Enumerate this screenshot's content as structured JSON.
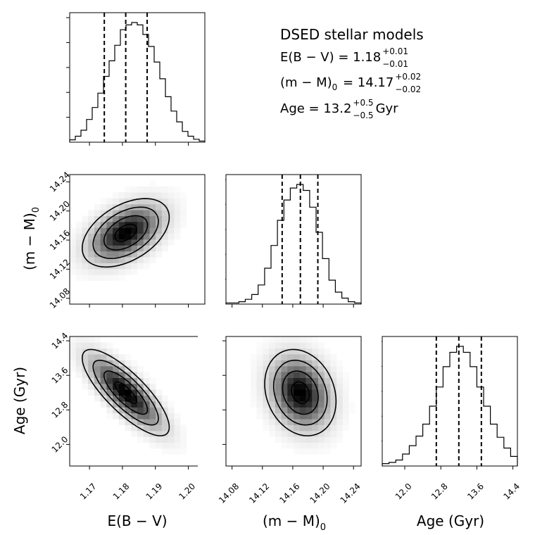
{
  "legend": {
    "title": "DSED stellar models",
    "ebv": {
      "lhs": "E(B − V) = 1.18",
      "sup": "+0.01",
      "sub": "−0.01",
      "tail": ""
    },
    "mm": {
      "lhs_a": "(m − M)",
      "lhs_sub": "0",
      "lhs_b": " = 14.17",
      "sup": "+0.02",
      "sub": "−0.02",
      "tail": ""
    },
    "age": {
      "lhs": "Age = 13.2",
      "sup": "+0.5",
      "sub": "−0.5",
      "tail": "Gyr"
    }
  },
  "axis_labels": {
    "ebv": "E(B − V)",
    "mm_main": "(m − M)",
    "mm_sub": "0",
    "age": "Age (Gyr)"
  },
  "chart_data": {
    "type": "corner",
    "parameters": [
      {
        "key": "ebv",
        "label": "E(B − V)",
        "median": 1.181,
        "lower": 1.1745,
        "upper": 1.1875,
        "range": [
          1.164,
          1.205
        ],
        "ticks": [
          1.17,
          1.18,
          1.19,
          1.2
        ],
        "tick_labels": [
          "1.17",
          "1.18",
          "1.19",
          "1.20"
        ]
      },
      {
        "key": "mm",
        "label": "(m − M)0",
        "median": 14.17,
        "lower": 14.146,
        "upper": 14.193,
        "range": [
          14.072,
          14.25
        ],
        "ticks": [
          14.08,
          14.12,
          14.16,
          14.2,
          14.24
        ],
        "tick_labels": [
          "14.08",
          "14.12",
          "14.16",
          "14.20",
          "14.24"
        ]
      },
      {
        "key": "age",
        "label": "Age (Gyr)",
        "median": 13.2,
        "lower": 12.7,
        "upper": 13.7,
        "range": [
          11.5,
          14.5
        ],
        "ticks": [
          12.0,
          12.8,
          13.6,
          14.4
        ],
        "tick_labels": [
          "12.0",
          "12.8",
          "13.6",
          "14.4"
        ]
      }
    ],
    "histograms": {
      "ebv": [
        0.02,
        0.05,
        0.1,
        0.19,
        0.29,
        0.41,
        0.55,
        0.68,
        0.81,
        0.94,
        0.98,
        1.0,
        0.98,
        0.9,
        0.8,
        0.67,
        0.53,
        0.38,
        0.26,
        0.17,
        0.09,
        0.05,
        0.025,
        0.01
      ],
      "mm": [
        0.01,
        0.01,
        0.02,
        0.04,
        0.08,
        0.16,
        0.3,
        0.49,
        0.7,
        0.87,
        0.97,
        1.0,
        0.95,
        0.81,
        0.6,
        0.38,
        0.2,
        0.1,
        0.05,
        0.02,
        0.01
      ],
      "age": [
        0.02,
        0.03,
        0.05,
        0.1,
        0.17,
        0.25,
        0.35,
        0.5,
        0.66,
        0.83,
        0.95,
        1.0,
        0.95,
        0.83,
        0.66,
        0.5,
        0.35,
        0.24,
        0.15,
        0.08
      ]
    },
    "correlations": {
      "mm_ebv": 0.45,
      "age_ebv": -0.8,
      "age_mm": -0.2
    },
    "sigmas": {
      "ebv": 0.0066,
      "mm": 0.0235,
      "age": 0.5
    },
    "contour_levels_sigma": [
      0.5,
      1.0,
      1.5,
      2.0
    ]
  }
}
